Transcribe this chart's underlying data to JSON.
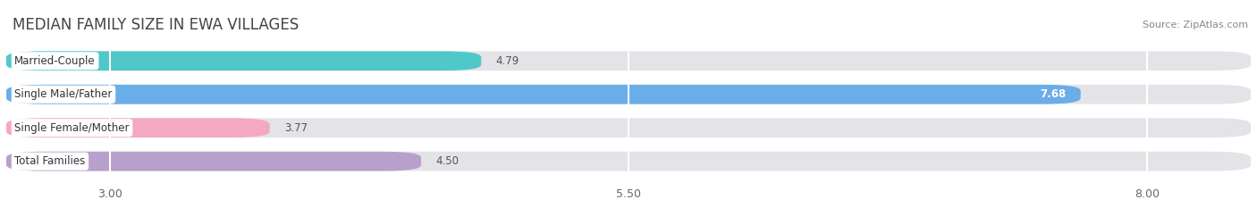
{
  "title": "MEDIAN FAMILY SIZE IN EWA VILLAGES",
  "source": "Source: ZipAtlas.com",
  "categories": [
    "Married-Couple",
    "Single Male/Father",
    "Single Female/Mother",
    "Total Families"
  ],
  "values": [
    4.79,
    7.68,
    3.77,
    4.5
  ],
  "colors": [
    "#50c8c8",
    "#6aaee8",
    "#f4a8c4",
    "#b8a0cc"
  ],
  "xlim_min": 2.5,
  "xlim_max": 8.5,
  "xticks": [
    3.0,
    5.5,
    8.0
  ],
  "xtick_labels": [
    "3.00",
    "5.50",
    "8.00"
  ],
  "bar_height": 0.58,
  "background_color": "#ffffff",
  "bar_bg_color": "#e4e4e8",
  "label_fontsize": 8.5,
  "value_fontsize": 8.5,
  "title_fontsize": 12,
  "source_fontsize": 8
}
